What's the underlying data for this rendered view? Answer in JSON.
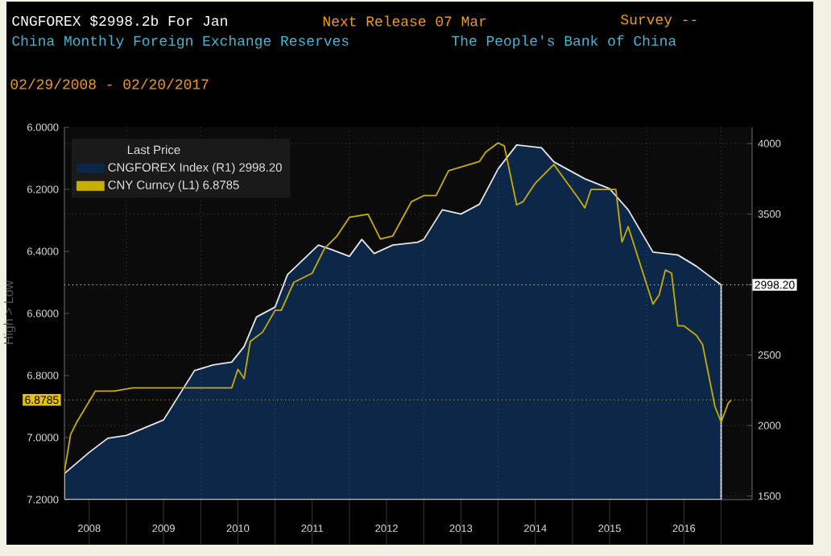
{
  "chart_data": {
    "type": "line",
    "title": "China Monthly Foreign Exchange Reserves",
    "subtitle": "The People's Bank of China",
    "annotations": [
      "CNGFOREX $2998.2b For Jan",
      "Next Release 07 Mar",
      "Survey --",
      "02/29/2008 - 02/20/2017"
    ],
    "ylabel": "High > Low",
    "legend_title": "Last Price",
    "legend": "top left",
    "grid": true,
    "xlim": [
      "2008-03-01",
      "2017-06-01"
    ],
    "xticks": [
      {
        "value": "2008-07-01",
        "label": "2008"
      },
      {
        "value": "2009-01-01",
        "label": null
      },
      {
        "value": "2009-07-01",
        "label": "2009"
      },
      {
        "value": "2010-01-01",
        "label": null
      },
      {
        "value": "2010-07-01",
        "label": "2010"
      },
      {
        "value": "2011-01-01",
        "label": null
      },
      {
        "value": "2011-07-01",
        "label": "2011"
      },
      {
        "value": "2012-01-01",
        "label": null
      },
      {
        "value": "2012-07-01",
        "label": "2012"
      },
      {
        "value": "2013-01-01",
        "label": null
      },
      {
        "value": "2013-07-01",
        "label": "2013"
      },
      {
        "value": "2014-01-01",
        "label": null
      },
      {
        "value": "2014-07-01",
        "label": "2014"
      },
      {
        "value": "2015-01-01",
        "label": null
      },
      {
        "value": "2015-07-01",
        "label": "2015"
      },
      {
        "value": "2016-01-01",
        "label": null
      },
      {
        "value": "2016-07-01",
        "label": "2016"
      },
      {
        "value": "2017-01-01",
        "label": null
      }
    ],
    "ylim": [
      7.2,
      6.0
    ],
    "yticks": [
      {
        "value": 6.0,
        "label": "6.0000"
      },
      {
        "value": 6.2,
        "label": "6.2000"
      },
      {
        "value": 6.4,
        "label": "6.4000"
      },
      {
        "value": 6.6,
        "label": "6.6000"
      },
      {
        "value": 6.8,
        "label": "6.8000"
      },
      {
        "value": 7.0,
        "label": "7.0000"
      },
      {
        "value": 7.2,
        "label": "7.2000"
      }
    ],
    "y2lim": [
      1475,
      4115
    ],
    "y2ticks": [
      1500,
      2000,
      2500,
      {
        "value": 3000,
        "label": null
      },
      3500,
      4000
    ],
    "ref_lines": [
      {
        "axis": "y2",
        "value": 2998.2,
        "label": "2998.20",
        "color": "#ffffff"
      },
      {
        "axis": "y",
        "value": 6.8785,
        "label": "6.8785",
        "color": "#e8c200"
      }
    ],
    "series": [
      {
        "name": "CNGFOREX Index (R1) 2998.20",
        "type": "area",
        "axis": "y2",
        "color": "#0c2747",
        "x": [
          "2008-03",
          "2008-07",
          "2008-10",
          "2009-01",
          "2009-07",
          "2009-09",
          "2009-12",
          "2010-03",
          "2010-06",
          "2010-08",
          "2010-10",
          "2011-01",
          "2011-03",
          "2011-08",
          "2011-10",
          "2012-01",
          "2012-03",
          "2012-05",
          "2012-08",
          "2012-12",
          "2013-01",
          "2013-04",
          "2013-07",
          "2013-10",
          "2014-01",
          "2014-04",
          "2014-08",
          "2014-10",
          "2015-03",
          "2015-07",
          "2015-10",
          "2016-02",
          "2016-06",
          "2016-09",
          "2017-01"
        ],
        "values": [
          1660,
          1810,
          1910,
          1930,
          2040,
          2180,
          2390,
          2430,
          2450,
          2560,
          2770,
          2840,
          3070,
          3280,
          3250,
          3200,
          3320,
          3220,
          3280,
          3300,
          3320,
          3530,
          3500,
          3570,
          3820,
          3990,
          3970,
          3870,
          3750,
          3680,
          3530,
          3230,
          3210,
          3130,
          2998.2
        ]
      },
      {
        "name": "CNY Curncy (L1) 6.8785",
        "axis": "y",
        "color": "#c9ad00",
        "x": [
          "2008-03",
          "2008-04",
          "2008-05",
          "2008-08",
          "2008-11",
          "2009-02",
          "2009-07",
          "2010-06",
          "2010-07",
          "2010-08",
          "2010-09",
          "2010-11",
          "2011-01",
          "2011-02",
          "2011-04",
          "2011-07",
          "2011-09",
          "2011-11",
          "2012-01",
          "2012-04",
          "2012-06",
          "2012-08",
          "2012-11",
          "2013-01",
          "2013-03",
          "2013-05",
          "2013-10",
          "2013-11",
          "2014-01",
          "2014-02",
          "2014-04",
          "2014-05",
          "2014-07",
          "2014-10",
          "2015-02",
          "2015-03",
          "2015-04",
          "2015-08",
          "2015-09",
          "2015-10",
          "2016-02",
          "2016-03",
          "2016-04",
          "2016-05",
          "2016-06",
          "2016-07",
          "2016-09",
          "2016-10",
          "2016-12",
          "2017-01",
          "2017-02-05",
          "2017-02-20"
        ],
        "values": [
          7.11,
          6.99,
          6.95,
          6.85,
          6.85,
          6.84,
          6.84,
          6.84,
          6.78,
          6.81,
          6.69,
          6.66,
          6.59,
          6.59,
          6.5,
          6.47,
          6.39,
          6.35,
          6.29,
          6.28,
          6.36,
          6.35,
          6.24,
          6.22,
          6.22,
          6.14,
          6.11,
          6.08,
          6.05,
          6.06,
          6.25,
          6.24,
          6.18,
          6.12,
          6.23,
          6.26,
          6.2,
          6.2,
          6.37,
          6.32,
          6.57,
          6.54,
          6.46,
          6.47,
          6.64,
          6.64,
          6.67,
          6.7,
          6.9,
          6.95,
          6.89,
          6.8785
        ]
      }
    ]
  }
}
